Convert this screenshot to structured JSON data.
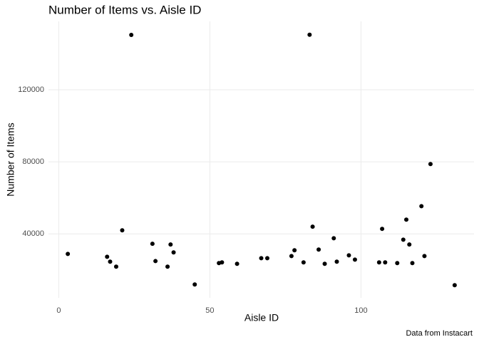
{
  "chart_data": {
    "type": "scatter",
    "title": "Number of Items vs. Aisle ID",
    "x_label": "Aisle ID",
    "y_label": "Number of Items",
    "caption": "Data from Instacart",
    "color": "#000000",
    "grid": true,
    "xlim": [
      -3.4,
      137.4
    ],
    "xticks": [
      0,
      50,
      100
    ],
    "ylim": [
      4500,
      158000
    ],
    "yticks": [
      40000,
      80000,
      120000
    ],
    "x": [
      3,
      16,
      17,
      19,
      24,
      21,
      31,
      32,
      36,
      37,
      38,
      45,
      53,
      54,
      59,
      67,
      69,
      77,
      78,
      81,
      83,
      84,
      86,
      88,
      91,
      92,
      96,
      98,
      106,
      107,
      108,
      112,
      114,
      115,
      116,
      117,
      120,
      121,
      123,
      131
    ],
    "values": [
      28900,
      27300,
      24600,
      21800,
      150500,
      42000,
      34500,
      24900,
      21800,
      34100,
      29700,
      11900,
      23800,
      24200,
      23400,
      26500,
      26500,
      27700,
      30900,
      24200,
      150600,
      44000,
      31300,
      23400,
      37600,
      24600,
      28100,
      25700,
      24200,
      42800,
      24200,
      23800,
      36800,
      47900,
      34100,
      23800,
      55400,
      27700,
      78800,
      11500
    ]
  }
}
